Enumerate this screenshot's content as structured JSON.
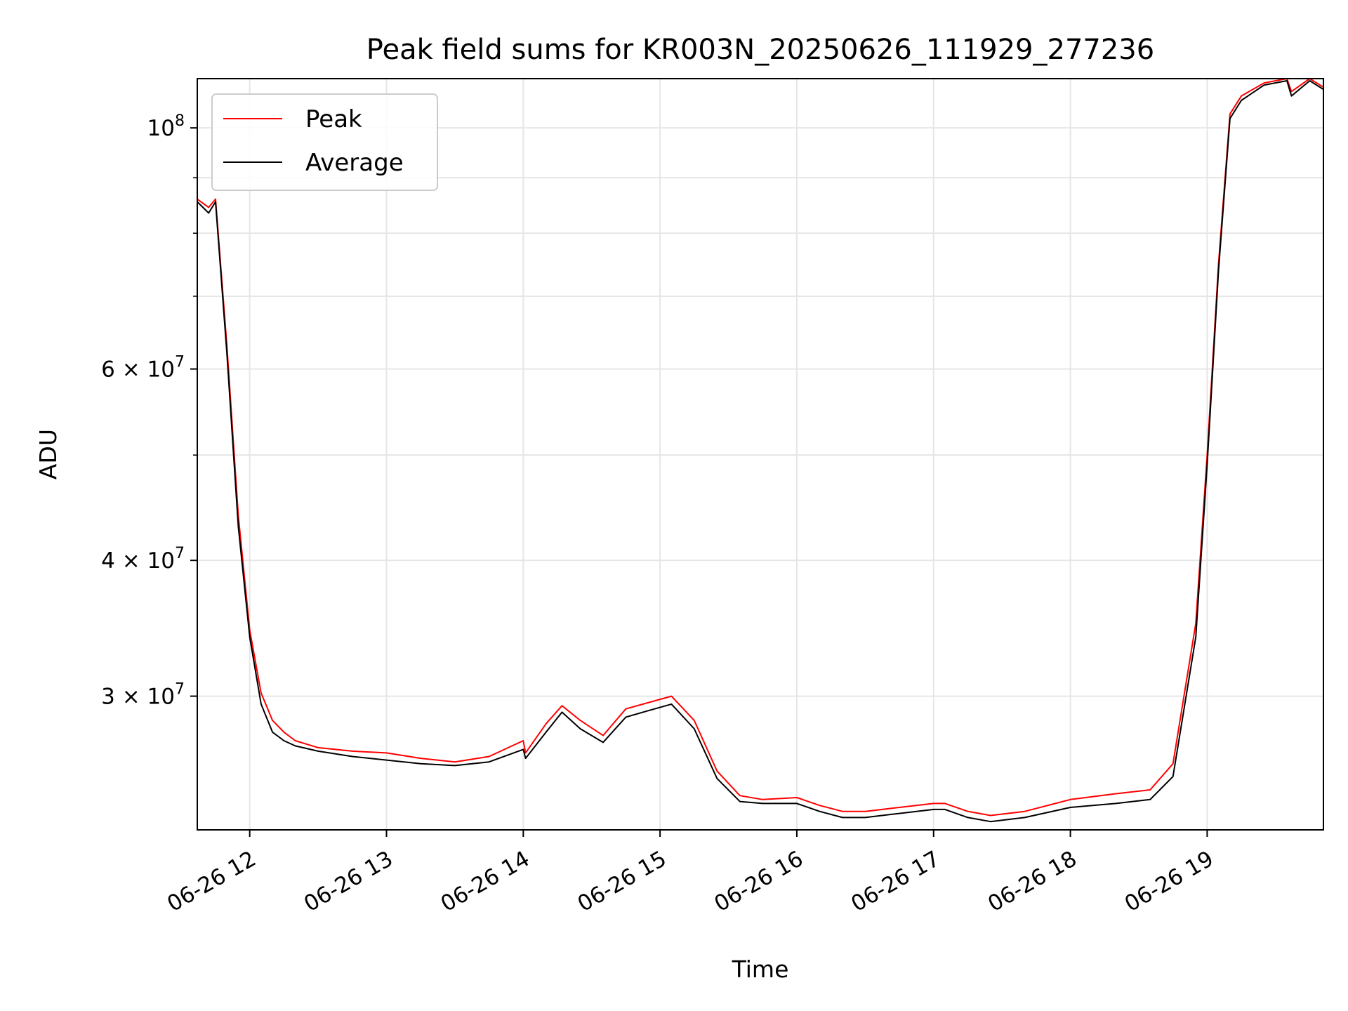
{
  "chart_data": {
    "type": "line",
    "title": "Peak field sums for KR003N_20250626_111929_277236",
    "xlabel": "Time",
    "ylabel": "ADU",
    "yscale": "log",
    "grid": true,
    "legend_position": "top-left",
    "xlim": [
      "2025-06-26 11:37",
      "2025-06-26 19:51"
    ],
    "ylim": [
      22600000,
      111000000
    ],
    "x_ticks": [
      "06-26 12",
      "06-26 13",
      "06-26 14",
      "06-26 15",
      "06-26 16",
      "06-26 17",
      "06-26 18",
      "06-26 19"
    ],
    "y_ticks": [
      {
        "value": 30000000,
        "mantissa": "3",
        "exponent": "7"
      },
      {
        "value": 40000000,
        "mantissa": "4",
        "exponent": "7"
      },
      {
        "value": 60000000,
        "mantissa": "6",
        "exponent": "7"
      },
      {
        "value": 100000000,
        "mantissa": "",
        "exponent": "8"
      }
    ],
    "series": [
      {
        "name": "Peak",
        "color": "#ff0000",
        "x": [
          "2025-06-26 11:37",
          "2025-06-26 11:42",
          "2025-06-26 11:45",
          "2025-06-26 11:50",
          "2025-06-26 11:55",
          "2025-06-26 12:00",
          "2025-06-26 12:05",
          "2025-06-26 12:10",
          "2025-06-26 12:15",
          "2025-06-26 12:20",
          "2025-06-26 12:30",
          "2025-06-26 12:45",
          "2025-06-26 13:00",
          "2025-06-26 13:15",
          "2025-06-26 13:30",
          "2025-06-26 13:45",
          "2025-06-26 14:00",
          "2025-06-26 14:01",
          "2025-06-26 14:10",
          "2025-06-26 14:17",
          "2025-06-26 14:25",
          "2025-06-26 14:35",
          "2025-06-26 14:45",
          "2025-06-26 14:55",
          "2025-06-26 15:05",
          "2025-06-26 15:15",
          "2025-06-26 15:25",
          "2025-06-26 15:35",
          "2025-06-26 15:45",
          "2025-06-26 16:00",
          "2025-06-26 16:10",
          "2025-06-26 16:20",
          "2025-06-26 16:30",
          "2025-06-26 16:45",
          "2025-06-26 17:00",
          "2025-06-26 17:05",
          "2025-06-26 17:15",
          "2025-06-26 17:25",
          "2025-06-26 17:40",
          "2025-06-26 18:00",
          "2025-06-26 18:20",
          "2025-06-26 18:35",
          "2025-06-26 18:45",
          "2025-06-26 18:55",
          "2025-06-26 19:00",
          "2025-06-26 19:05",
          "2025-06-26 19:10",
          "2025-06-26 19:15",
          "2025-06-26 19:25",
          "2025-06-26 19:35",
          "2025-06-26 19:37",
          "2025-06-26 19:45",
          "2025-06-26 19:51"
        ],
        "values": [
          86000000,
          84500000,
          86000000,
          63000000,
          44000000,
          34500000,
          30200000,
          28500000,
          27800000,
          27300000,
          26900000,
          26700000,
          26600000,
          26300000,
          26100000,
          26400000,
          27300000,
          26600000,
          28300000,
          29400000,
          28500000,
          27600000,
          29200000,
          29600000,
          30000000,
          28500000,
          25600000,
          24300000,
          24100000,
          24200000,
          23800000,
          23500000,
          23500000,
          23700000,
          23900000,
          23900000,
          23500000,
          23300000,
          23500000,
          24100000,
          24400000,
          24600000,
          26000000,
          35000000,
          50000000,
          75000000,
          103000000,
          107000000,
          110000000,
          111000000,
          108000000,
          111000000,
          109000000
        ]
      },
      {
        "name": "Average",
        "color": "#000000",
        "x": [
          "2025-06-26 11:37",
          "2025-06-26 11:42",
          "2025-06-26 11:45",
          "2025-06-26 11:50",
          "2025-06-26 11:55",
          "2025-06-26 12:00",
          "2025-06-26 12:05",
          "2025-06-26 12:10",
          "2025-06-26 12:15",
          "2025-06-26 12:20",
          "2025-06-26 12:30",
          "2025-06-26 12:45",
          "2025-06-26 13:00",
          "2025-06-26 13:15",
          "2025-06-26 13:30",
          "2025-06-26 13:45",
          "2025-06-26 14:00",
          "2025-06-26 14:01",
          "2025-06-26 14:10",
          "2025-06-26 14:17",
          "2025-06-26 14:25",
          "2025-06-26 14:35",
          "2025-06-26 14:45",
          "2025-06-26 14:55",
          "2025-06-26 15:05",
          "2025-06-26 15:15",
          "2025-06-26 15:25",
          "2025-06-26 15:35",
          "2025-06-26 15:45",
          "2025-06-26 16:00",
          "2025-06-26 16:10",
          "2025-06-26 16:20",
          "2025-06-26 16:30",
          "2025-06-26 16:45",
          "2025-06-26 17:00",
          "2025-06-26 17:05",
          "2025-06-26 17:15",
          "2025-06-26 17:25",
          "2025-06-26 17:40",
          "2025-06-26 18:00",
          "2025-06-26 18:20",
          "2025-06-26 18:35",
          "2025-06-26 18:45",
          "2025-06-26 18:55",
          "2025-06-26 19:00",
          "2025-06-26 19:05",
          "2025-06-26 19:10",
          "2025-06-26 19:15",
          "2025-06-26 19:25",
          "2025-06-26 19:35",
          "2025-06-26 19:37",
          "2025-06-26 19:45",
          "2025-06-26 19:51"
        ],
        "values": [
          85500000,
          83500000,
          85500000,
          62000000,
          43000000,
          34000000,
          29500000,
          27800000,
          27300000,
          27000000,
          26700000,
          26400000,
          26200000,
          26000000,
          25900000,
          26100000,
          26800000,
          26300000,
          27800000,
          29000000,
          28000000,
          27200000,
          28700000,
          29100000,
          29500000,
          28000000,
          25200000,
          24000000,
          23900000,
          23900000,
          23500000,
          23200000,
          23200000,
          23400000,
          23600000,
          23600000,
          23200000,
          23000000,
          23200000,
          23700000,
          23900000,
          24100000,
          25300000,
          34000000,
          49000000,
          74000000,
          102000000,
          106000000,
          109500000,
          110500000,
          107000000,
          110500000,
          108500000
        ]
      }
    ]
  }
}
